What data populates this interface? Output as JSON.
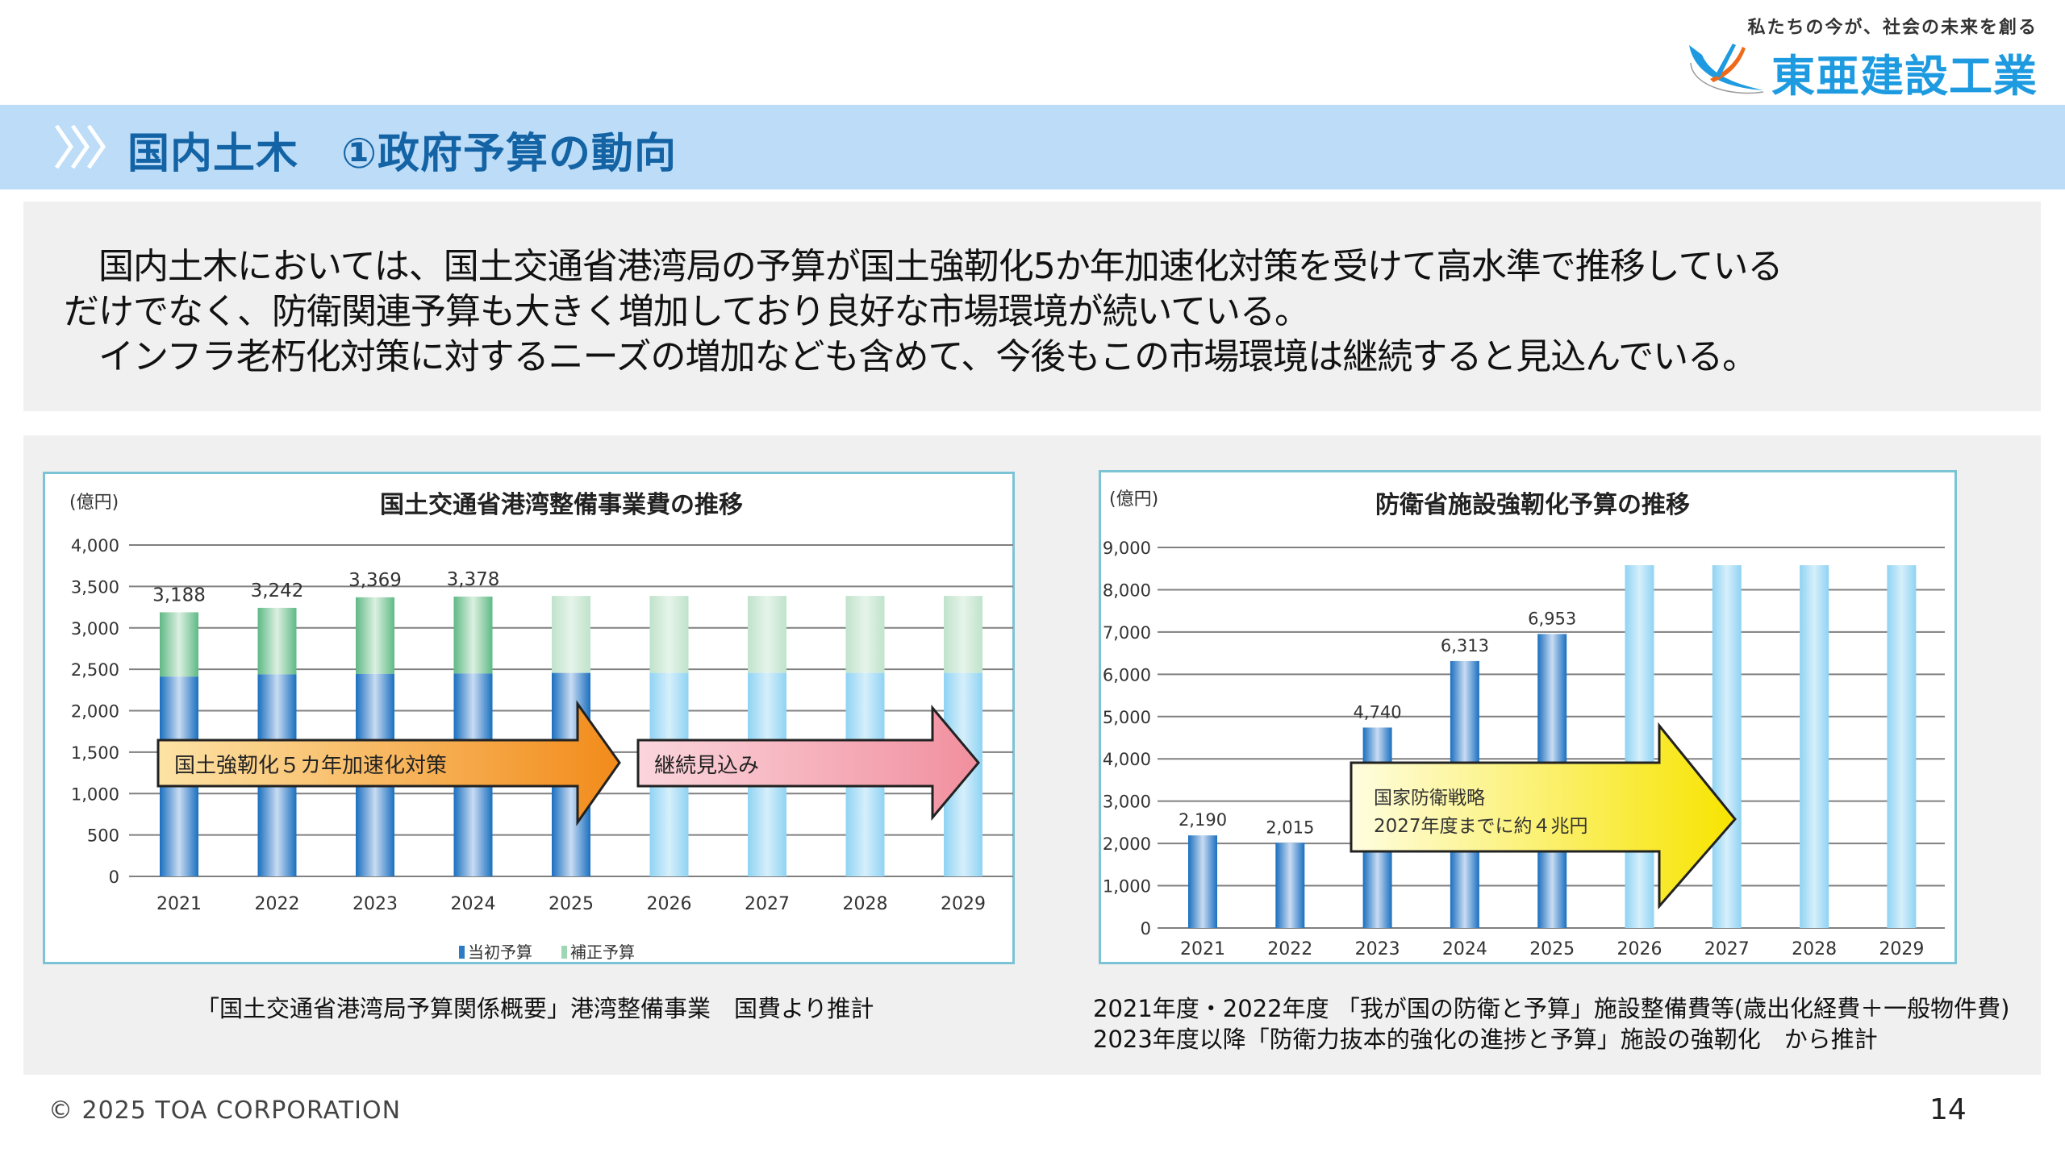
{
  "header": {
    "tagline": "私たちの今が、社会の未来を創る",
    "company_name": "東亜建設工業",
    "logo_icon": "toa-bird-logo-icon"
  },
  "title_bar": {
    "icon": "triple-chevron-icon",
    "title": "国内土木　①政府予算の動向"
  },
  "description": {
    "lines": [
      "　国内土木においては、国土交通省港湾局の予算が国土強靭化5か年加速化対策を受けて高水準で推移している",
      "だけでなく、防衛関連予算も大きく増加しており良好な市場環境が続いている。",
      "　インフラ老朽化対策に対するニーズの増加なども含めて、今後もこの市場環境は継続すると見込んでいる。"
    ]
  },
  "chart_data": [
    {
      "type": "bar",
      "stacked": true,
      "title": "国土交通省港湾整備事業費の推移",
      "ylabel": "(億円)",
      "xlabel": "",
      "ylim": [
        0,
        4000
      ],
      "yticks": [
        0,
        500,
        1000,
        1500,
        2000,
        2500,
        3000,
        3500,
        4000
      ],
      "ytick_labels": [
        "0",
        "500",
        "1,000",
        "1,500",
        "2,000",
        "2,500",
        "3,000",
        "3,500",
        "4,000"
      ],
      "grid": true,
      "categories": [
        "2021",
        "2022",
        "2023",
        "2024",
        "2025",
        "2026",
        "2027",
        "2028",
        "2029"
      ],
      "series": [
        {
          "name": "当初予算",
          "color": "#2b7cc4",
          "values": [
            2412,
            2439,
            2444,
            2449,
            2456,
            2456,
            2456,
            2456,
            2456
          ],
          "labels": [
            "2,412",
            "2,439",
            "2,444",
            "2,449",
            "2,456",
            "",
            "",
            "",
            ""
          ]
        },
        {
          "name": "補正予算",
          "color": "#7cc79a",
          "values": [
            776,
            803,
            925,
            929,
            930,
            930,
            930,
            930,
            930
          ]
        }
      ],
      "totals": [
        3188,
        3242,
        3369,
        3378,
        3386,
        3386,
        3386,
        3386,
        3386
      ],
      "total_labels": [
        "3,188",
        "3,242",
        "3,369",
        "3,378",
        "",
        "",
        "",
        "",
        ""
      ],
      "forecast_from_index": 5,
      "forecast_colors": {
        "base": "#a6dcf5",
        "supplement": "#cfe9d8"
      },
      "partial_forecast_index": 4,
      "legend": [
        "当初予算",
        "補正予算"
      ],
      "legend_position": "bottom",
      "annotations": [
        {
          "text": "国土強靭化５カ年加速化対策",
          "type": "arrow",
          "color": "#f39a2a",
          "from": "2021",
          "to": "2025"
        },
        {
          "text": "継続見込み",
          "type": "arrow",
          "color": "#f3a4b2",
          "from": "2025",
          "to": "2029"
        }
      ],
      "source_note": "「国土交通省港湾局予算関係概要」港湾整備事業　国費より推計"
    },
    {
      "type": "bar",
      "title": "防衛省施設強靭化予算の推移",
      "ylabel": "(億円)",
      "xlabel": "",
      "ylim": [
        0,
        9000
      ],
      "yticks": [
        0,
        1000,
        2000,
        3000,
        4000,
        5000,
        6000,
        7000,
        8000,
        9000
      ],
      "ytick_labels": [
        "0",
        "1,000",
        "2,000",
        "3,000",
        "4,000",
        "5,000",
        "6,000",
        "7,000",
        "8,000",
        "9,000"
      ],
      "grid": true,
      "categories": [
        "2021",
        "2022",
        "2023",
        "2024",
        "2025",
        "2026",
        "2027",
        "2028",
        "2029"
      ],
      "series": [
        {
          "name": "施設強靭化予算",
          "color": "#2b7cc4",
          "values": [
            2190,
            2015,
            4740,
            6313,
            6953,
            8580,
            8580,
            8580,
            8580
          ],
          "labels": [
            "2,190",
            "2,015",
            "4,740",
            "6,313",
            "6,953",
            "",
            "",
            "",
            ""
          ]
        }
      ],
      "forecast_from_index": 5,
      "forecast_color": "#a6dcf5",
      "annotations": [
        {
          "text": "国家防衛戦略\n2027年度までに約４兆円",
          "type": "arrow",
          "color": "#fbe828",
          "from": "2023",
          "to": "2027"
        }
      ],
      "source_note": [
        "2021年度・2022年度 「我が国の防衛と予算」施設整備費等(歳出化経費＋一般物件費)",
        "2023年度以降「防衛力抜本的強化の進捗と予算」施設の強靭化　から推計"
      ]
    }
  ],
  "notes": {
    "left": "「国土交通省港湾局予算関係概要」港湾整備事業　国費より推計",
    "right_1": "2021年度・2022年度 「我が国の防衛と予算」施設整備費等(歳出化経費＋一般物件費)",
    "right_2": "2023年度以降「防衛力抜本的強化の進捗と予算」施設の強靭化　から推計"
  },
  "footer": {
    "copyright": "© 2025 TOA CORPORATION",
    "page_number": "14"
  }
}
